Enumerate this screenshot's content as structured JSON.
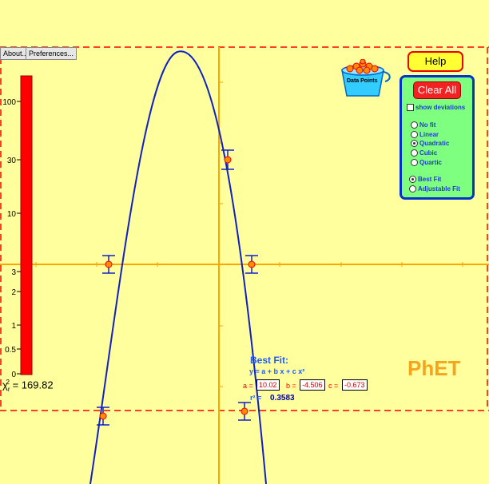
{
  "toolbar": {
    "about_label": "About...",
    "preferences_label": "Preferences..."
  },
  "help_label": "Help",
  "bucket_label": "Data Points",
  "fit_panel": {
    "clear_label": "Clear All",
    "show_deviations_label": "show deviations",
    "show_deviations_checked": false,
    "fit_types": [
      {
        "label": "No fit",
        "selected": false
      },
      {
        "label": "Linear",
        "selected": false
      },
      {
        "label": "Quadratic",
        "selected": true
      },
      {
        "label": "Cubic",
        "selected": false
      },
      {
        "label": "Quartic",
        "selected": false
      }
    ],
    "fit_modes": [
      {
        "label": "Best Fit",
        "selected": true
      },
      {
        "label": "Adjustable Fit",
        "selected": false
      }
    ]
  },
  "chi_meter": {
    "ticks": [
      "100",
      "30",
      "10",
      "3",
      "2",
      "1",
      "0.5",
      "0"
    ],
    "symbol": "χ",
    "value_text": "= 169.82"
  },
  "best_fit": {
    "title": "Best Fit:",
    "equation": "y = a + b x + c x²",
    "a_label": "a =",
    "a_value": "10.02",
    "b_label": "b =",
    "b_value": "-4.506",
    "c_label": "c =",
    "c_value": "-0.673",
    "rsq_label": "r² =",
    "rsq_value": "0.3583"
  },
  "logo": "PhET",
  "colors": {
    "background": "#ffff9d",
    "axis": "#ffa500",
    "curve": "#1020c8",
    "boundary": "#ff0000",
    "point_fill": "#ff8c00",
    "error_bar": "#1020c8",
    "panel": "#7fff7f",
    "panel_border": "#0033cc",
    "meter": "#ff0000"
  }
}
